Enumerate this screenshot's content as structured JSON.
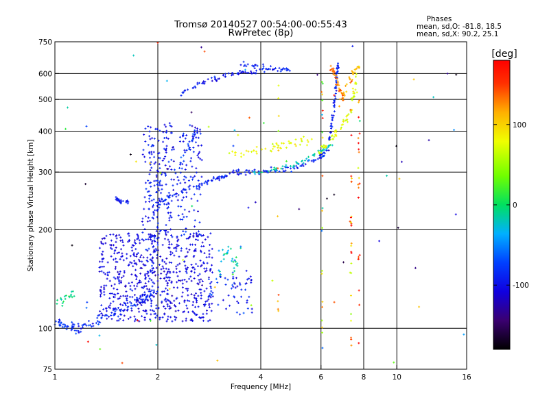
{
  "chart_data": {
    "type": "scatter",
    "title": "Tromsø 20140527 00:54:00-00:55:43",
    "subtitle": "RwPretec (8p)",
    "xlabel": "Frequency [MHz]",
    "ylabel": "Stationary phase Virtual Height [km]",
    "x_scale": "log",
    "y_scale": "log",
    "xlim": [
      1,
      16
    ],
    "ylim": [
      75,
      750
    ],
    "x_ticks": [
      1,
      2,
      4,
      6,
      8,
      10,
      16
    ],
    "y_ticks": [
      75,
      100,
      200,
      300,
      400,
      500,
      600,
      750
    ],
    "x_grid": [
      2,
      4,
      6,
      8,
      10
    ],
    "y_grid": [
      100,
      200,
      300,
      400,
      500,
      600
    ],
    "grid": true,
    "stats": {
      "header": "Phases",
      "line_o": "mean, sd,O: -81.8, 18.5",
      "line_x": "mean, sd,X:  90.2, 25.1"
    },
    "colorbar": {
      "label": "[deg]",
      "range": [
        -180,
        180
      ],
      "ticks": [
        100,
        0,
        -100
      ],
      "placement": "right"
    },
    "traces": [
      {
        "x": [
          1.0,
          1.05,
          1.1,
          1.15,
          1.2,
          1.3,
          1.4,
          1.5,
          1.6,
          1.7,
          1.8,
          1.9,
          1.95
        ],
        "y": [
          105,
          103,
          101,
          100,
          100,
          104,
          108,
          112,
          116,
          120,
          123,
          126,
          128
        ],
        "spread": 0.025,
        "phase": -85,
        "density": 10
      },
      {
        "x": [
          1.02,
          1.06,
          1.1,
          1.15
        ],
        "y": [
          120,
          122,
          125,
          128
        ],
        "spread": 0.02,
        "phase": -5,
        "density": 6
      },
      {
        "x": [
          1.5,
          1.52,
          1.55,
          1.6,
          1.65
        ],
        "y": [
          252,
          248,
          244,
          242,
          244
        ],
        "spread": 0.01,
        "phase": -95,
        "density": 6
      },
      {
        "x": [
          1.85,
          1.9,
          1.95,
          2.0,
          2.05,
          2.1
        ],
        "y": [
          130,
          160,
          200,
          250,
          320,
          400
        ],
        "spread": 0.08,
        "phase": -95,
        "density": 14
      },
      {
        "x": [
          2.0,
          2.2,
          2.5,
          2.8,
          3.0,
          3.2,
          3.5,
          4.0,
          4.5,
          5.0,
          5.5,
          6.0,
          6.3
        ],
        "y": [
          240,
          255,
          268,
          280,
          288,
          295,
          300,
          302,
          305,
          310,
          320,
          335,
          350
        ],
        "spread": 0.015,
        "phase": -90,
        "density": 12
      },
      {
        "x": [
          3.8,
          4.2,
          4.6,
          5.0,
          5.4,
          5.8,
          6.2,
          6.5
        ],
        "y": [
          300,
          303,
          308,
          316,
          326,
          340,
          355,
          370
        ],
        "spread": 0.01,
        "phase": -20,
        "density": 8
      },
      {
        "x": [
          3.2,
          3.6,
          4.0,
          4.4,
          4.8,
          5.2,
          5.6
        ],
        "y": [
          340,
          345,
          350,
          356,
          362,
          370,
          375
        ],
        "spread": 0.02,
        "phase": 80,
        "density": 8
      },
      {
        "x": [
          5.8,
          6.2,
          6.6,
          7.0,
          7.3,
          7.5,
          7.6
        ],
        "y": [
          340,
          360,
          390,
          420,
          460,
          520,
          600
        ],
        "spread": 0.02,
        "phase": 75,
        "density": 10
      },
      {
        "x": [
          6.3,
          6.45,
          6.55,
          6.6,
          6.65,
          6.7,
          6.75
        ],
        "y": [
          360,
          420,
          480,
          530,
          570,
          610,
          640
        ],
        "spread": 0.01,
        "phase": -90,
        "density": 10
      },
      {
        "x": [
          6.8,
          7.0,
          7.2,
          7.4,
          7.6,
          7.8
        ],
        "y": [
          480,
          520,
          560,
          600,
          620,
          640
        ],
        "spread": 0.015,
        "phase": 110,
        "density": 6
      },
      {
        "x": [
          2.3,
          2.5,
          2.7,
          2.9,
          3.1,
          3.3,
          3.5,
          3.7,
          3.9
        ],
        "y": [
          520,
          540,
          560,
          575,
          590,
          600,
          605,
          605,
          605
        ],
        "spread": 0.012,
        "phase": -95,
        "density": 8
      },
      {
        "x": [
          3.5,
          3.7,
          3.9,
          4.1,
          4.3,
          4.5,
          4.7,
          4.9
        ],
        "y": [
          640,
          635,
          630,
          625,
          620,
          618,
          615,
          612
        ],
        "spread": 0.015,
        "phase": -90,
        "density": 6
      },
      {
        "x": [
          2.3,
          2.4,
          2.5,
          2.6
        ],
        "y": [
          300,
          340,
          380,
          400
        ],
        "spread": 0.03,
        "phase": -80,
        "density": 8
      },
      {
        "x": [
          6.4,
          6.5,
          6.6,
          6.7,
          6.8,
          6.9,
          7.0
        ],
        "y": [
          630,
          610,
          590,
          560,
          540,
          520,
          500
        ],
        "spread": 0.015,
        "phase": 130,
        "density": 6
      }
    ],
    "clouds": [
      {
        "xlim": [
          1.35,
          2.9
        ],
        "ylim": [
          105,
          195
        ],
        "count": 650,
        "phase": -105,
        "sd": 12
      },
      {
        "xlim": [
          1.8,
          2.7
        ],
        "ylim": [
          190,
          420
        ],
        "count": 260,
        "phase": -95,
        "sd": 15
      },
      {
        "xlim": [
          2.8,
          3.8
        ],
        "ylim": [
          110,
          150
        ],
        "count": 60,
        "phase": -90,
        "sd": 20
      },
      {
        "xlim": [
          3.0,
          3.5
        ],
        "ylim": [
          145,
          180
        ],
        "count": 30,
        "phase": -20,
        "sd": 30
      }
    ],
    "verticals": [
      {
        "x": 6.05,
        "ylim": [
          85,
          650
        ],
        "count": 24,
        "phase": 60
      },
      {
        "x": 7.35,
        "ylim": [
          85,
          650
        ],
        "count": 28,
        "phase": 120
      },
      {
        "x": 7.75,
        "ylim": [
          85,
          650
        ],
        "count": 22,
        "phase": 140
      },
      {
        "x": 4.5,
        "ylim": [
          95,
          600
        ],
        "count": 12,
        "phase": 90
      }
    ]
  }
}
